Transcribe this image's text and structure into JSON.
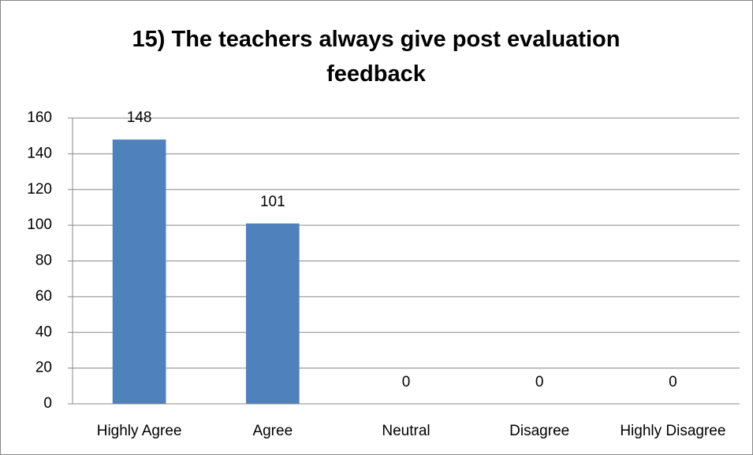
{
  "chart_data": {
    "type": "bar",
    "title": "15) The teachers always give post evaluation feedback",
    "categories": [
      "Highly Agree",
      "Agree",
      "Neutral",
      "Disagree",
      "Highly Disagree"
    ],
    "values": [
      148,
      101,
      0,
      0,
      0
    ],
    "color": "#4f81bd",
    "ylim": [
      0,
      160
    ],
    "yticks": [
      0,
      20,
      40,
      60,
      80,
      100,
      120,
      140,
      160
    ],
    "grid": true
  }
}
